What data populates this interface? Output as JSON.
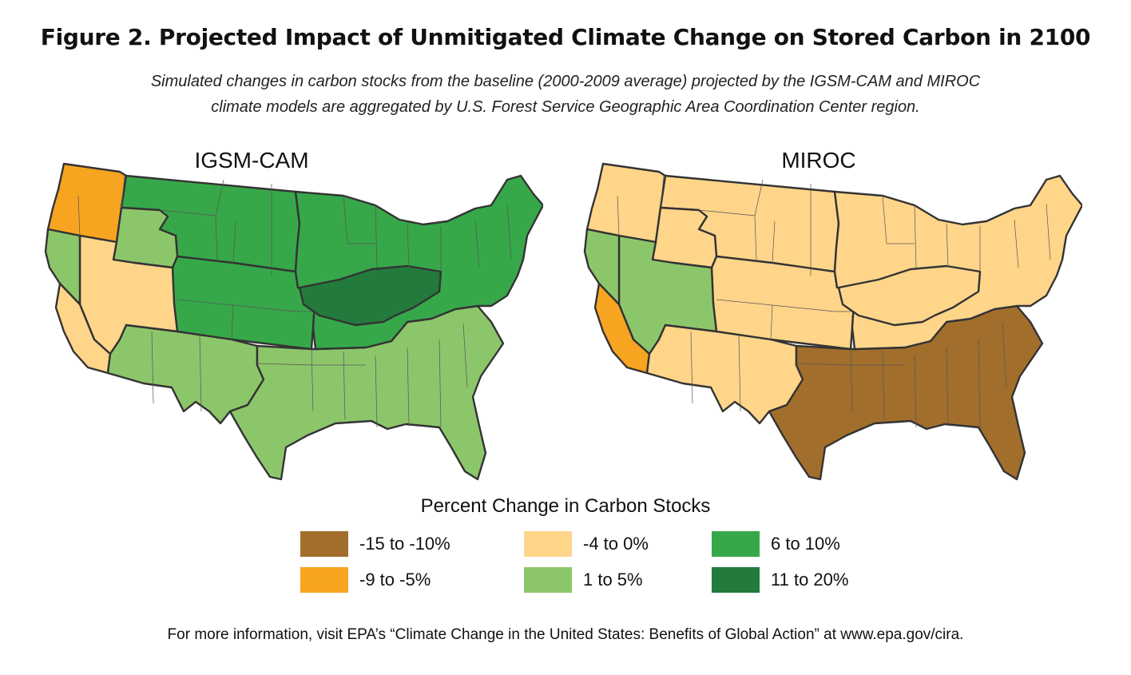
{
  "header": {
    "title": "Figure 2. Projected Impact of Unmitigated Climate Change on Stored Carbon in 2100",
    "subtitle_line1": "Simulated changes in carbon stocks from the baseline (2000-2009 average) projected by the IGSM-CAM and MIROC",
    "subtitle_line2": "climate models are aggregated by U.S. Forest Service Geographic Area Coordination Center region."
  },
  "maps": [
    {
      "title": "IGSM-CAM",
      "regions": {
        "northwest": "#f7a420",
        "northern_rockies": "#36a84a",
        "rocky_mountain": "#36a84a",
        "great_basin_north": "#8cc66a",
        "great_basin_south": "#ffd58a",
        "northern_california": "#8cc66a",
        "southern_california": "#ffd58a",
        "southwest": "#8cc66a",
        "southern": "#8cc66a",
        "eastern_north": "#36a84a",
        "eastern_central": "#227a3c"
      }
    },
    {
      "title": "MIROC",
      "regions": {
        "northwest": "#ffd58a",
        "northern_rockies": "#ffd58a",
        "rocky_mountain": "#ffd58a",
        "great_basin_north": "#ffd58a",
        "great_basin_south": "#8cc66a",
        "northern_california": "#8cc66a",
        "southern_california": "#f7a420",
        "southwest": "#ffd58a",
        "southern": "#a26e2b",
        "eastern_north": "#ffd58a",
        "eastern_central": "#ffd58a"
      }
    }
  ],
  "legend": {
    "title": "Percent Change in Carbon Stocks",
    "items": [
      {
        "label": "-15 to -10%",
        "color": "#a26e2b"
      },
      {
        "label": "-9 to -5%",
        "color": "#f7a420"
      },
      {
        "label": "-4 to 0%",
        "color": "#ffd58a"
      },
      {
        "label": "1 to 5%",
        "color": "#8cc66a"
      },
      {
        "label": "6 to 10%",
        "color": "#36a84a"
      },
      {
        "label": "11 to 20%",
        "color": "#227a3c"
      }
    ]
  },
  "footer": {
    "text": "For more information, visit EPA’s “Climate Change in the United States: Benefits of Global Action” at www.epa.gov/cira."
  }
}
